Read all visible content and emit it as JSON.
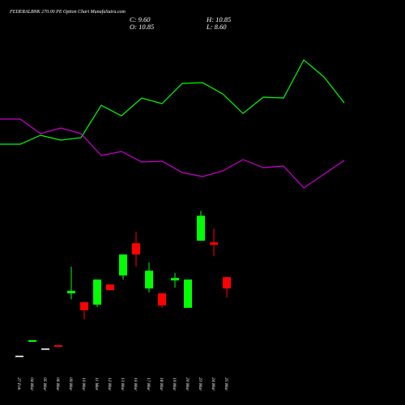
{
  "header": {
    "title": "FEDERALBNK 270.00  PE Option  Chart MunafaSutra.com",
    "close": "C: 9.60",
    "high": "H: 10.85",
    "open": "O: 10.85",
    "low": "L: 8.60"
  },
  "chart_data": [
    {
      "type": "line",
      "ylim": [
        0,
        100
      ],
      "series": [
        {
          "color": "#00ff00",
          "values": [
            36,
            36,
            41.5,
            38.5,
            40,
            60,
            53.5,
            64.5,
            61,
            73.5,
            74,
            67,
            55,
            65,
            64.5,
            88,
            77.5,
            61.5
          ]
        },
        {
          "color": "#cc00cc",
          "values": [
            51.5,
            51.5,
            42.5,
            46,
            42.5,
            29,
            31.5,
            25,
            25.5,
            18.5,
            16,
            19.5,
            26.5,
            21.5,
            22.5,
            9,
            17.5,
            26
          ]
        }
      ]
    },
    {
      "type": "candlestick",
      "ylim": [
        0,
        30
      ],
      "categories": [
        "27 Feb",
        "04 Mar",
        "05 Mar",
        "06 Mar",
        "09 Mar",
        "10 Mar",
        "11 Mar",
        "12 Mar",
        "13 Mar",
        "16 Mar",
        "17 Mar",
        "18 Mar",
        "19 Mar",
        "20 Mar",
        "23 Mar",
        "24 Mar",
        "25 Mar"
      ],
      "open": [
        2.1,
        3.8,
        2.9,
        3.25,
        9.06,
        8.08,
        7.81,
        10.04,
        11.03,
        14.6,
        9.6,
        9.06,
        10.49,
        7.46,
        14.87,
        14.69,
        10.85
      ],
      "high": [
        2.1,
        3.8,
        2.9,
        3.25,
        12.0,
        8.08,
        10.58,
        10.04,
        13.35,
        15.85,
        12.46,
        9.06,
        11.3,
        10.58,
        18.17,
        16.21,
        10.85
      ],
      "low": [
        2.1,
        3.8,
        2.9,
        3.25,
        8.4,
        6.2,
        7.54,
        9.42,
        10.58,
        12.0,
        9.15,
        7.46,
        9.69,
        7.46,
        14.87,
        13.17,
        8.6
      ],
      "close": [
        2.1,
        3.8,
        2.9,
        3.25,
        9.33,
        7.19,
        10.58,
        9.42,
        13.35,
        13.35,
        11.56,
        7.72,
        10.76,
        10.58,
        17.63,
        14.42,
        9.6
      ],
      "colors": [
        "#cccccc",
        "#00ff00",
        "#cccccc",
        "#ff0000",
        "#00ff00",
        "#ff0000",
        "#00ff00",
        "#ff0000",
        "#00ff00",
        "#ff0000",
        "#00ff00",
        "#ff0000",
        "#00ff00",
        "#00ff00",
        "#00ff00",
        "#ff0000",
        "#ff0000"
      ]
    }
  ]
}
